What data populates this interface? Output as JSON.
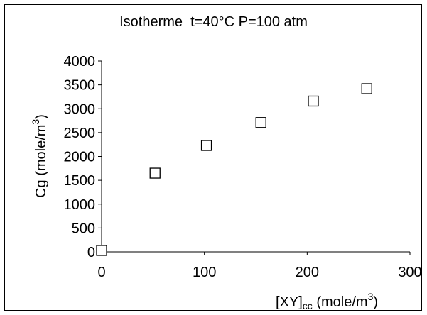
{
  "chart_data": {
    "type": "scatter",
    "title": "Isotherme  t=40°C P=100 atm",
    "xlabel": {
      "base": "[XY]",
      "subscript": "cc",
      "rest": " (mole/m",
      "superscript": "3",
      "close": ")"
    },
    "ylabel": {
      "base": "Cg (mole/m",
      "superscript": "3",
      "close": ")"
    },
    "xlim": [
      0,
      300
    ],
    "ylim": [
      0,
      4000
    ],
    "x_ticks": [
      0,
      100,
      200,
      300
    ],
    "y_ticks": [
      0,
      500,
      1000,
      1500,
      2000,
      2500,
      3000,
      3500,
      4000
    ],
    "grid": false,
    "legend": "none",
    "marker": "hollow-square",
    "x": [
      0,
      52,
      102,
      155,
      206,
      258
    ],
    "y": [
      30,
      1650,
      2230,
      2710,
      3160,
      3420
    ]
  }
}
